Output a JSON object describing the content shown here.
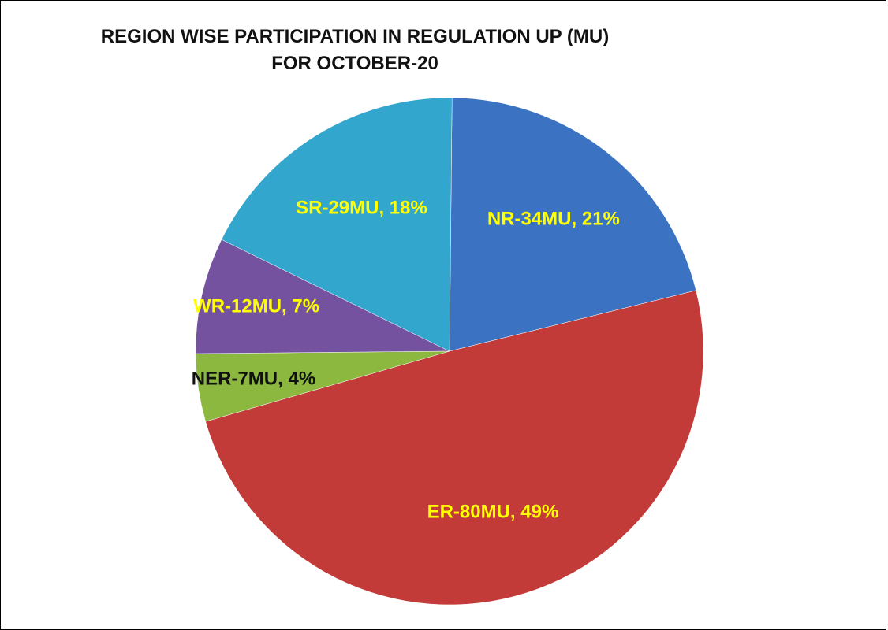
{
  "chart_data": {
    "type": "pie",
    "title": "REGION WISE PARTICIPATION IN REGULATION UP (MU) FOR OCTOBER-20",
    "values": [
      34,
      80,
      7,
      12,
      29
    ],
    "value_labels": [
      "NR-34MU, 21%",
      "ER-80MU, 49%",
      "NER-7MU, 4%",
      "WR-12MU, 7%",
      "SR-29MU, 18%"
    ],
    "colors": [
      "#3b73c2",
      "#c23b38",
      "#8cb83f",
      "#7552a0",
      "#32a6cc"
    ],
    "label_colors": [
      "#ffff00",
      "#ffff00",
      "#111111",
      "#ffff00",
      "#ffff00"
    ]
  }
}
